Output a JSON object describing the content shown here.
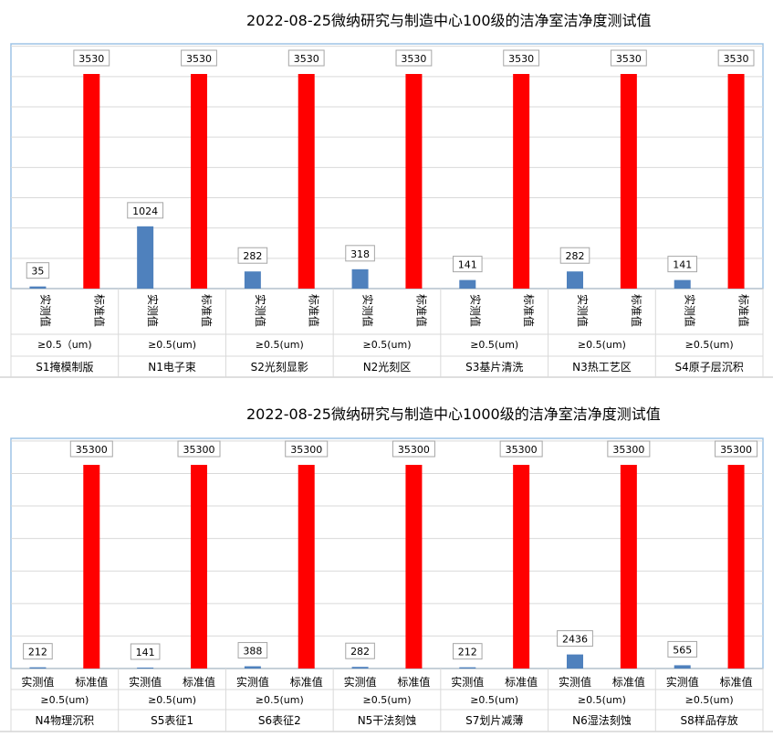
{
  "charts": [
    {
      "title": "2022-08-25微纳研究与制造中心100级的洁净室洁净度测试值",
      "chart_data": {
        "type": "bar",
        "title": "2022-08-25微纳研究与制造中心100级的洁净室洁净度测试值",
        "groups": [
          {
            "location": "S1掩模制版",
            "particle": "≥0.5（um)"
          },
          {
            "location": "N1电子束",
            "particle": "≥0.5(um)"
          },
          {
            "location": "S2光刻显影",
            "particle": "≥0.5(um)"
          },
          {
            "location": "N2光刻区",
            "particle": "≥0.5(um)"
          },
          {
            "location": "S3基片清洗",
            "particle": "≥0.5(um)"
          },
          {
            "location": "N3热工艺区",
            "particle": "≥0.5(um)"
          },
          {
            "location": "S4原子层沉积",
            "particle": "≥0.5(um)"
          }
        ],
        "bar_labels": [
          "实测值",
          "标准值"
        ],
        "series": [
          {
            "values": [
              35,
              1024,
              282,
              318,
              141,
              282,
              141
            ],
            "color": "#4f81bd"
          },
          {
            "values": [
              3530,
              3530,
              3530,
              3530,
              3530,
              3530,
              3530
            ],
            "color": "#ff0000"
          }
        ],
        "ylim": [
          0,
          3530
        ],
        "grid": true,
        "legend": "none"
      }
    },
    {
      "title": "2022-08-25微纳研究与制造中心1000级的洁净室洁净度测试值",
      "chart_data": {
        "type": "bar",
        "title": "2022-08-25微纳研究与制造中心1000级的洁净室洁净度测试值",
        "groups": [
          {
            "location": "N4物理沉积",
            "particle": "≥0.5(um)"
          },
          {
            "location": "S5表征1",
            "particle": "≥0.5(um)"
          },
          {
            "location": "S6表征2",
            "particle": "≥0.5(um)"
          },
          {
            "location": "N5干法刻蚀",
            "particle": "≥0.5(um)"
          },
          {
            "location": "S7划片减薄",
            "particle": "≥0.5(um)"
          },
          {
            "location": "N6湿法刻蚀",
            "particle": "≥0.5(um)"
          },
          {
            "location": "S8样品存放",
            "particle": "≥0.5(um)"
          }
        ],
        "bar_labels": [
          "实测值",
          "标准值"
        ],
        "series": [
          {
            "values": [
              212,
              141,
              388,
              282,
              212,
              2436,
              565
            ],
            "color": "#4f81bd"
          },
          {
            "values": [
              35300,
              35300,
              35300,
              35300,
              35300,
              35300,
              35300
            ],
            "color": "#ff0000"
          }
        ],
        "ylim": [
          0,
          35300
        ],
        "grid": true,
        "legend": "none"
      }
    }
  ]
}
